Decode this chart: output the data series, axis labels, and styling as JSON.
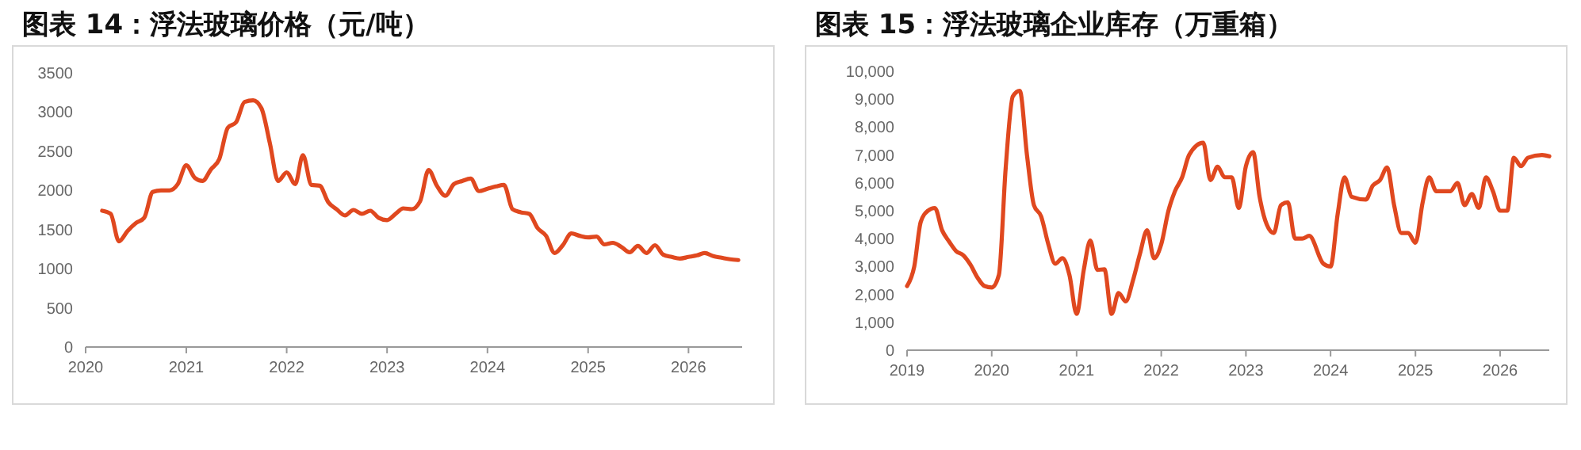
{
  "chart_data": [
    {
      "type": "line",
      "title": "图表 14：浮法玻璃价格（元/吨）",
      "xlim": [
        "2020-01-01",
        "2026-07-15"
      ],
      "xticks": [
        "2020",
        "2021",
        "2022",
        "2023",
        "2024",
        "2025",
        "2026"
      ],
      "ylim": [
        0,
        3500
      ],
      "yticks": [
        0,
        500,
        1000,
        1500,
        2000,
        2500,
        3000,
        3500
      ],
      "marker": "none",
      "line_style": "solid",
      "x": [
        "2020-03",
        "2020-04",
        "2020-05",
        "2020-06",
        "2020-07",
        "2020-08",
        "2020-09",
        "2020-10",
        "2020-11",
        "2020-12",
        "2021-01",
        "2021-02",
        "2021-03",
        "2021-04",
        "2021-05",
        "2021-06",
        "2021-07",
        "2021-08",
        "2021-09",
        "2021-10",
        "2021-11",
        "2021-12",
        "2022-01",
        "2022-02",
        "2022-03",
        "2022-04",
        "2022-05",
        "2022-06",
        "2022-07",
        "2022-08",
        "2022-09",
        "2022-10",
        "2022-11",
        "2022-12",
        "2023-01",
        "2023-02",
        "2023-03",
        "2023-04",
        "2023-05",
        "2023-06",
        "2023-07",
        "2023-08",
        "2023-09",
        "2023-10",
        "2023-11",
        "2023-12",
        "2024-01",
        "2024-02",
        "2024-03",
        "2024-04",
        "2024-05",
        "2024-06",
        "2024-07",
        "2024-08",
        "2024-09",
        "2024-10",
        "2024-11",
        "2024-12",
        "2025-01",
        "2025-02",
        "2025-03",
        "2025-04",
        "2025-05",
        "2025-06",
        "2025-07",
        "2025-08",
        "2025-09",
        "2025-10",
        "2025-11",
        "2025-12",
        "2026-01",
        "2026-02",
        "2026-03",
        "2026-04",
        "2026-05",
        "2026-06",
        "2026-07"
      ],
      "series": [
        {
          "color": "#e0481f",
          "values": [
            1740,
            1700,
            1350,
            1480,
            1580,
            1650,
            1980,
            2000,
            2000,
            2080,
            2320,
            2160,
            2120,
            2270,
            2400,
            2800,
            2870,
            3130,
            3150,
            3050,
            2600,
            2120,
            2230,
            2080,
            2450,
            2070,
            2060,
            1850,
            1760,
            1680,
            1750,
            1700,
            1740,
            1650,
            1620,
            1700,
            1770,
            1760,
            1860,
            2260,
            2060,
            1930,
            2080,
            2120,
            2150,
            1990,
            2020,
            2050,
            2070,
            1760,
            1720,
            1700,
            1520,
            1420,
            1200,
            1300,
            1450,
            1420,
            1400,
            1410,
            1310,
            1330,
            1280,
            1210,
            1290,
            1200,
            1300,
            1180,
            1150,
            1130,
            1150,
            1170,
            1200,
            1160,
            1140,
            1120,
            1110
          ]
        }
      ]
    },
    {
      "type": "line",
      "title": "图表 15：浮法玻璃企业库存（万重箱）",
      "xlim": [
        "2019-01-01",
        "2026-08-01"
      ],
      "xticks": [
        "2019",
        "2020",
        "2021",
        "2022",
        "2023",
        "2024",
        "2025",
        "2026"
      ],
      "ylim": [
        0,
        10000
      ],
      "yticks": [
        0,
        {
          "value": 1000,
          "label": "1,000"
        },
        {
          "value": 2000,
          "label": "2,000"
        },
        {
          "value": 3000,
          "label": "3,000"
        },
        {
          "value": 4000,
          "label": "4,000"
        },
        {
          "value": 5000,
          "label": "5,000"
        },
        {
          "value": 6000,
          "label": "6,000"
        },
        {
          "value": 7000,
          "label": "7,000"
        },
        {
          "value": 8000,
          "label": "8,000"
        },
        {
          "value": 9000,
          "label": "9,000"
        },
        {
          "value": 10000,
          "label": "10,000"
        }
      ],
      "marker": "none",
      "line_style": "solid",
      "x": [
        "2019-01",
        "2019-02",
        "2019-03",
        "2019-04",
        "2019-05",
        "2019-06",
        "2019-07",
        "2019-08",
        "2019-09",
        "2019-10",
        "2019-11",
        "2019-12",
        "2020-01",
        "2020-02",
        "2020-03",
        "2020-04",
        "2020-05",
        "2020-06",
        "2020-07",
        "2020-08",
        "2020-09",
        "2020-10",
        "2020-11",
        "2020-12",
        "2021-01",
        "2021-02",
        "2021-03",
        "2021-04",
        "2021-05",
        "2021-06",
        "2021-07",
        "2021-08",
        "2021-09",
        "2021-10",
        "2021-11",
        "2021-12",
        "2022-01",
        "2022-02",
        "2022-03",
        "2022-04",
        "2022-05",
        "2022-07",
        "2022-08",
        "2022-09",
        "2022-10",
        "2022-11",
        "2022-12",
        "2023-01",
        "2023-02",
        "2023-03",
        "2023-04",
        "2023-05",
        "2023-06",
        "2023-07",
        "2023-08",
        "2023-09",
        "2023-10",
        "2023-12",
        "2024-01",
        "2024-02",
        "2024-03",
        "2024-04",
        "2024-06",
        "2024-07",
        "2024-08",
        "2024-09",
        "2024-10",
        "2024-11",
        "2024-12",
        "2025-01",
        "2025-02",
        "2025-03",
        "2025-04",
        "2025-06",
        "2025-07",
        "2025-08",
        "2025-09",
        "2025-10",
        "2025-11",
        "2025-12",
        "2026-01",
        "2026-02",
        "2026-03",
        "2026-04",
        "2026-05",
        "2026-07",
        "2026-08"
      ],
      "series": [
        {
          "color": "#e0481f",
          "values": [
            2300,
            3000,
            4600,
            5000,
            5100,
            4300,
            3900,
            3550,
            3400,
            3070,
            2600,
            2300,
            2250,
            2700,
            6500,
            9100,
            9300,
            7000,
            5200,
            4800,
            3800,
            3100,
            3300,
            2700,
            1300,
            2880,
            3930,
            2880,
            2900,
            1300,
            2050,
            1750,
            2500,
            3450,
            4300,
            3300,
            3800,
            5000,
            5700,
            6200,
            7000,
            7440,
            6100,
            6580,
            6200,
            6200,
            5100,
            6600,
            7100,
            5500,
            4500,
            4200,
            5200,
            5300,
            4000,
            4000,
            4100,
            3100,
            3000,
            4900,
            6200,
            5500,
            5400,
            5900,
            6100,
            6550,
            5200,
            4200,
            4200,
            3850,
            5300,
            6200,
            5700,
            5700,
            6000,
            5200,
            5600,
            5100,
            6200,
            5700,
            5000,
            5000,
            6900,
            6600,
            6900,
            7000,
            6950
          ]
        }
      ]
    }
  ]
}
